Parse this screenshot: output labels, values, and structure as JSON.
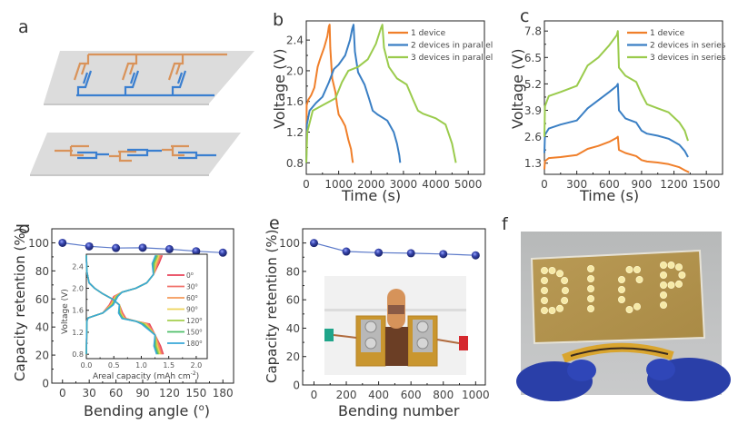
{
  "panels": {
    "a": {
      "label": "a"
    },
    "b": {
      "label": "b"
    },
    "c": {
      "label": "c"
    },
    "d": {
      "label": "d"
    },
    "e": {
      "label": "e"
    },
    "f": {
      "label": "f"
    }
  },
  "colors": {
    "orange": "#f07f2a",
    "blue": "#3a7fc4",
    "green": "#9acb4c",
    "marker": "#2e3d9e",
    "markerline": "#5b79c9"
  },
  "diagram_a": {
    "top_plane": "parallel connection of 3 devices",
    "bottom_plane": "series connection of 3 devices"
  },
  "chart_data": [
    {
      "id": "b",
      "type": "line",
      "title": "",
      "xlabel": "Time (s)",
      "ylabel": "Voltage (V)",
      "xlim": [
        0,
        5500
      ],
      "ylim": [
        0.65,
        2.65
      ],
      "xticks": [
        0,
        1000,
        2000,
        3000,
        4000,
        5000
      ],
      "yticks": [
        0.8,
        1.2,
        1.6,
        2.0,
        2.4
      ],
      "ytick_labels": [
        "0.8",
        "1.2",
        "1.6",
        "2.0",
        "2.4"
      ],
      "legend_position": "top-right",
      "series": [
        {
          "name": "1 device",
          "color": "#f07f2a",
          "x": [
            0,
            10,
            60,
            150,
            250,
            350,
            400,
            450,
            550,
            650,
            700,
            720,
            740,
            800,
            900,
            950,
            1000,
            1100,
            1200,
            1300,
            1380,
            1420,
            1440
          ],
          "y": [
            0.8,
            1.55,
            1.62,
            1.68,
            1.78,
            2.05,
            2.12,
            2.18,
            2.3,
            2.45,
            2.58,
            2.6,
            2.3,
            1.9,
            1.72,
            1.55,
            1.43,
            1.36,
            1.28,
            1.1,
            0.98,
            0.85,
            0.8
          ]
        },
        {
          "name": "2 devices in parallel",
          "color": "#3a7fc4",
          "x": [
            0,
            20,
            100,
            300,
            500,
            700,
            850,
            1000,
            1200,
            1350,
            1420,
            1460,
            1500,
            1600,
            1800,
            1950,
            2050,
            2200,
            2500,
            2700,
            2800,
            2870,
            2900
          ],
          "y": [
            0.8,
            1.3,
            1.48,
            1.58,
            1.66,
            1.85,
            2.02,
            2.08,
            2.2,
            2.4,
            2.55,
            2.6,
            2.25,
            1.98,
            1.82,
            1.62,
            1.48,
            1.43,
            1.35,
            1.2,
            1.05,
            0.9,
            0.8
          ]
        },
        {
          "name": "3 devices in parallel",
          "color": "#9acb4c",
          "x": [
            0,
            30,
            200,
            500,
            900,
            1100,
            1300,
            1600,
            1900,
            2150,
            2300,
            2350,
            2400,
            2550,
            2800,
            3100,
            3300,
            3450,
            3600,
            4000,
            4300,
            4500,
            4620
          ],
          "y": [
            0.8,
            1.2,
            1.48,
            1.55,
            1.64,
            1.85,
            2.0,
            2.05,
            2.15,
            2.35,
            2.55,
            2.6,
            2.3,
            2.05,
            1.9,
            1.82,
            1.62,
            1.48,
            1.44,
            1.38,
            1.3,
            1.05,
            0.8
          ]
        }
      ]
    },
    {
      "id": "c",
      "type": "line",
      "title": "",
      "xlabel": "Time (s)",
      "ylabel": "Voltage (V)",
      "xlim": [
        0,
        1650
      ],
      "ylim": [
        0.75,
        8.3
      ],
      "xticks": [
        0,
        300,
        600,
        900,
        1200,
        1500
      ],
      "yticks": [
        1.3,
        2.6,
        3.9,
        5.2,
        6.5,
        7.8
      ],
      "ytick_labels": [
        "1.3",
        "2.6",
        "3.9",
        "5.2",
        "6.5",
        "7.8"
      ],
      "legend_position": "top-right",
      "series": [
        {
          "name": "1 device",
          "color": "#f07f2a",
          "x": [
            0,
            5,
            40,
            150,
            300,
            350,
            400,
            500,
            600,
            670,
            680,
            690,
            750,
            850,
            900,
            950,
            1050,
            1150,
            1250,
            1300,
            1340
          ],
          "y": [
            1.0,
            1.4,
            1.55,
            1.6,
            1.7,
            1.85,
            2.0,
            2.15,
            2.35,
            2.55,
            2.6,
            1.95,
            1.8,
            1.65,
            1.45,
            1.38,
            1.33,
            1.25,
            1.1,
            0.95,
            0.85
          ]
        },
        {
          "name": "2 devices in series",
          "color": "#3a7fc4",
          "x": [
            0,
            5,
            40,
            150,
            300,
            350,
            400,
            500,
            600,
            670,
            680,
            690,
            750,
            850,
            900,
            950,
            1050,
            1150,
            1250,
            1300,
            1330
          ],
          "y": [
            1.8,
            2.7,
            3.0,
            3.2,
            3.4,
            3.7,
            4.0,
            4.4,
            4.8,
            5.1,
            5.2,
            3.9,
            3.5,
            3.3,
            2.9,
            2.75,
            2.65,
            2.5,
            2.2,
            1.9,
            1.6
          ]
        },
        {
          "name": "3 devices in series",
          "color": "#9acb4c",
          "x": [
            0,
            5,
            40,
            150,
            300,
            350,
            400,
            500,
            600,
            670,
            680,
            690,
            750,
            850,
            900,
            950,
            1050,
            1150,
            1250,
            1300,
            1330
          ],
          "y": [
            2.6,
            4.1,
            4.6,
            4.8,
            5.1,
            5.6,
            6.1,
            6.5,
            7.1,
            7.6,
            7.8,
            6.0,
            5.6,
            5.3,
            4.7,
            4.2,
            4.0,
            3.8,
            3.3,
            2.9,
            2.4
          ]
        }
      ]
    },
    {
      "id": "d",
      "type": "scatter",
      "title": "",
      "xlabel": "Bending angle (°)",
      "xlabel_main": "Bending angle (",
      "xlabel_sup": "o",
      "xlabel_end": ")",
      "ylabel": "Capacity retention (%)",
      "xlim": [
        -12,
        192
      ],
      "ylim": [
        0,
        110
      ],
      "xticks": [
        0,
        30,
        60,
        90,
        120,
        150,
        180
      ],
      "yticks": [
        0,
        20,
        40,
        60,
        80,
        100
      ],
      "series": [
        {
          "name": "Capacity retention",
          "color": "#2e3d9e",
          "x": [
            0,
            30,
            60,
            90,
            120,
            150,
            180
          ],
          "y": [
            100,
            97.5,
            96.3,
            96.5,
            95.5,
            94,
            93
          ]
        }
      ],
      "inset": {
        "type": "line",
        "xlabel": "Areal capacity (mAh cm",
        "xlabel_sup": "-2",
        "xlabel_end": ")",
        "ylabel": "Voltage (V)",
        "xlim": [
          0,
          2.2
        ],
        "ylim": [
          0.72,
          2.62
        ],
        "xticks": [
          0.0,
          0.5,
          1.0,
          1.5,
          2.0
        ],
        "xtick_labels": [
          "0.0",
          "0.5",
          "1.0",
          "1.5",
          "2.0"
        ],
        "yticks": [
          0.8,
          1.2,
          1.6,
          2.0,
          2.4
        ],
        "ytick_labels": [
          "0.8",
          "1.2",
          "1.6",
          "2.0",
          "2.4"
        ],
        "legend_position": "right",
        "series": [
          {
            "name": "0",
            "color": "#e8435a",
            "cap": 1.4
          },
          {
            "name": "30",
            "color": "#f0716a",
            "cap": 1.38
          },
          {
            "name": "60",
            "color": "#f59a5a",
            "cap": 1.36
          },
          {
            "name": "90",
            "color": "#eed45a",
            "cap": 1.34
          },
          {
            "name": "120",
            "color": "#a5cf4e",
            "cap": 1.32
          },
          {
            "name": "150",
            "color": "#4fbf6a",
            "cap": 1.3
          },
          {
            "name": "180",
            "color": "#3aa8d8",
            "cap": 1.28
          }
        ],
        "legend_sup": "o"
      }
    },
    {
      "id": "e",
      "type": "scatter",
      "title": "",
      "xlabel": "Bending number",
      "ylabel": "Capacity retention (%)",
      "xlim": [
        -70,
        1060
      ],
      "ylim": [
        0,
        110
      ],
      "xticks": [
        0,
        200,
        400,
        600,
        800,
        1000
      ],
      "yticks": [
        0,
        20,
        40,
        60,
        80,
        100
      ],
      "series": [
        {
          "name": "Capacity retention",
          "color": "#2e3d9e",
          "x": [
            0,
            200,
            400,
            600,
            800,
            1000
          ],
          "y": [
            100,
            94,
            93.2,
            92.8,
            92.2,
            91.3
          ]
        }
      ],
      "inset_photo": "flexible device bent on rod with clips"
    }
  ],
  "photo_f": {
    "text_lit": "DICP",
    "description": "LED array spelling DICP powered by bent device held with blue gloves"
  }
}
